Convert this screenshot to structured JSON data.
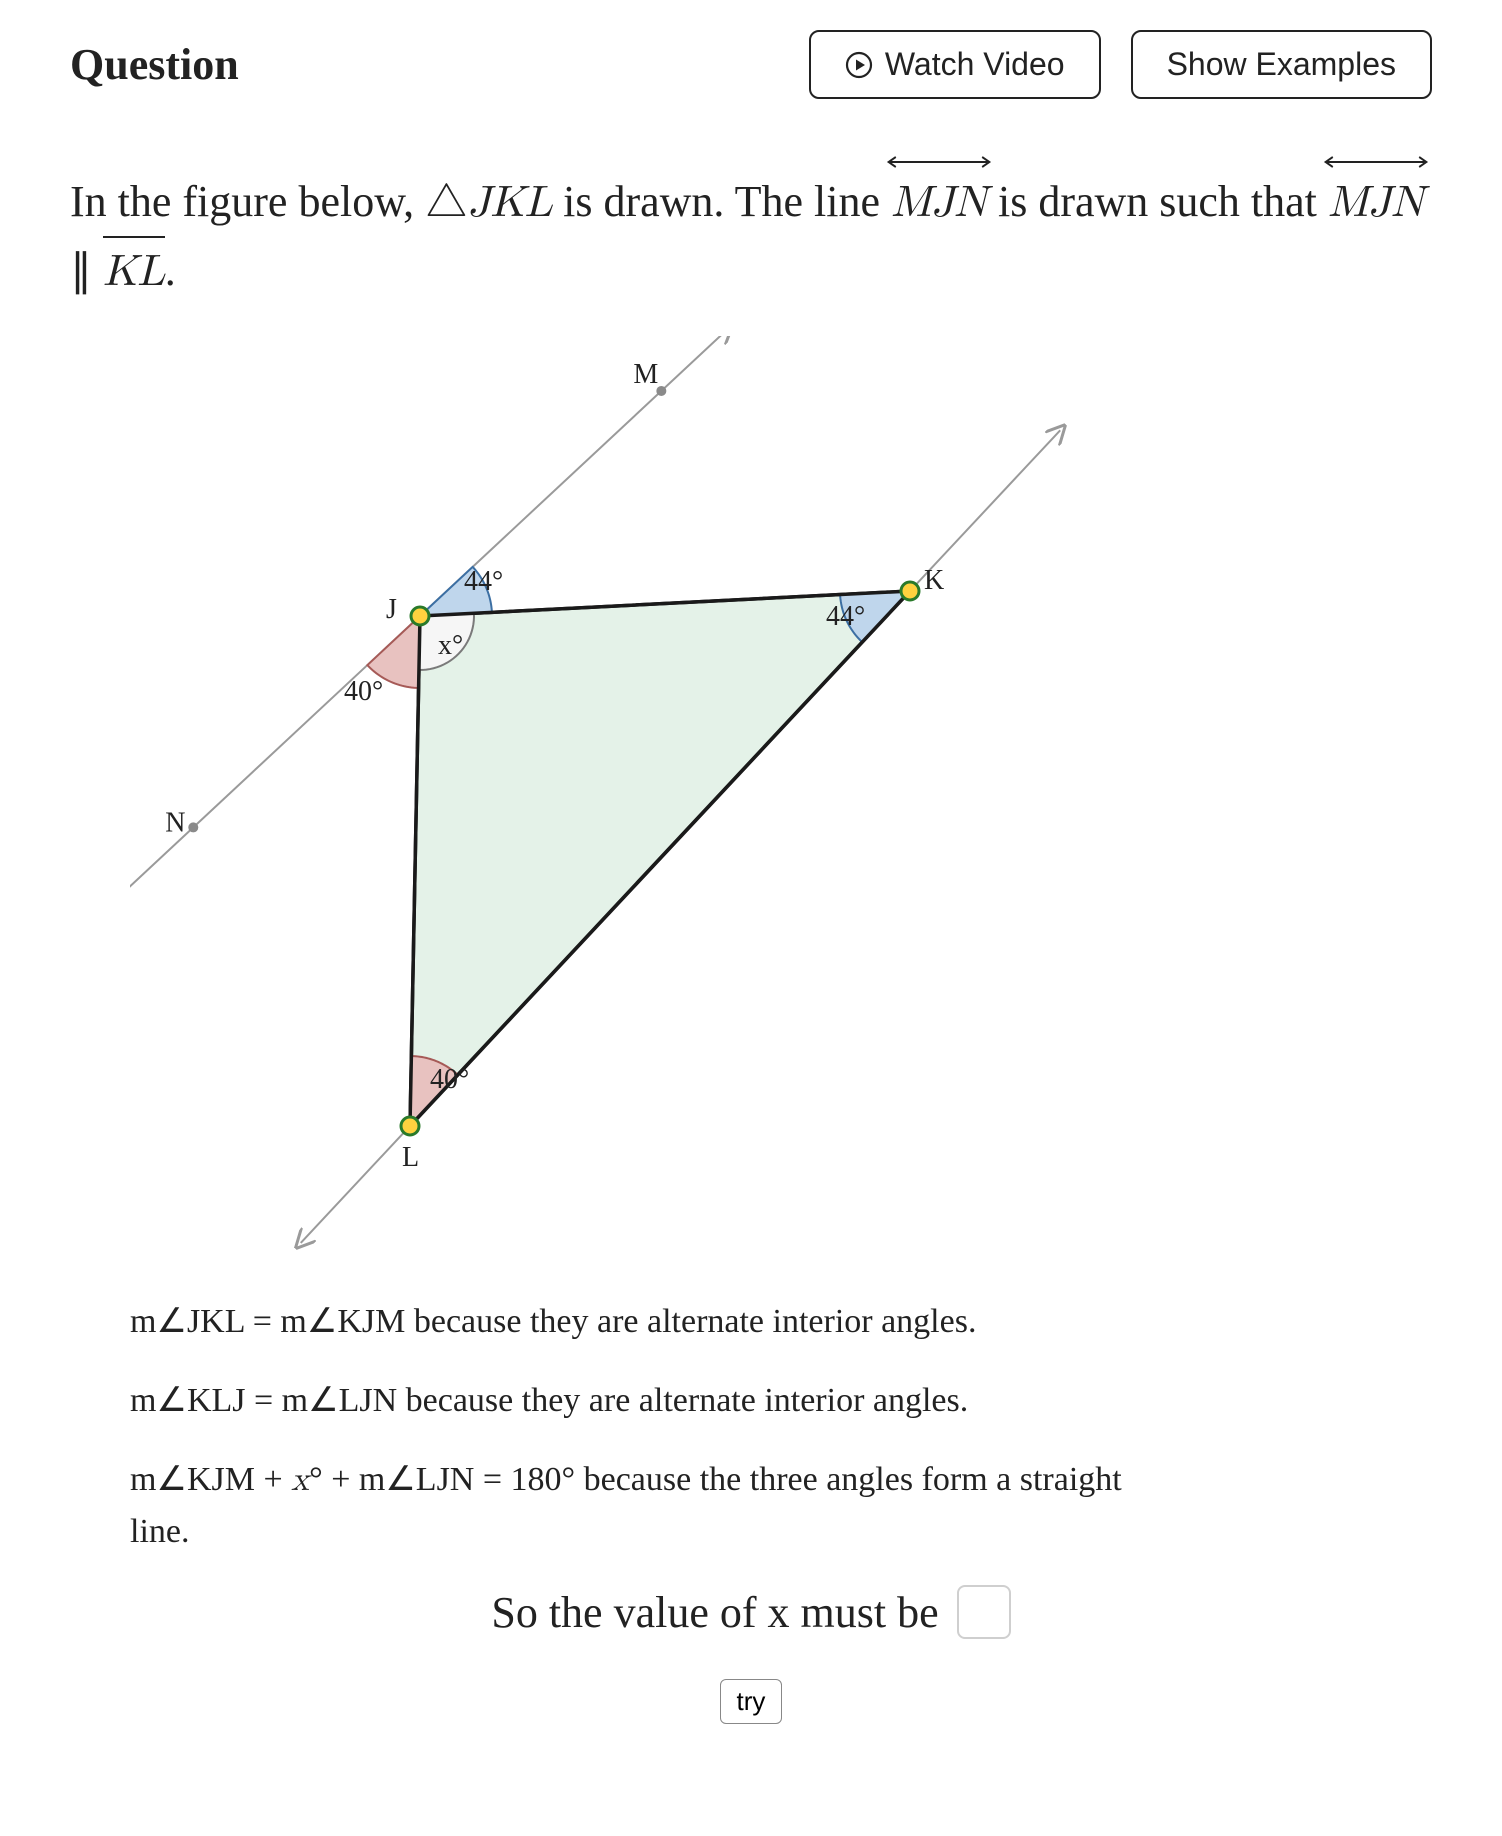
{
  "header": {
    "title": "Question",
    "watch_video": "Watch Video",
    "show_examples": "Show Examples"
  },
  "problem": {
    "pre": "In the figure below, ",
    "triangle": "JKL",
    "mid": " is drawn. The line ",
    "line_mjn": "MJN",
    "post": " is drawn such that ",
    "parallel_left": "MJN",
    "parallel_sym": " ∥ ",
    "parallel_right": "KL",
    "end": "."
  },
  "figure": {
    "background_color": "#ffffff",
    "triangle_fill": "#e4f2e8",
    "triangle_stroke": "#1a1a1a",
    "line_color": "#9a9a9a",
    "angle_kjm": {
      "label": "44°",
      "fill": "#bfd6ec",
      "stroke": "#3c6fa3"
    },
    "angle_x": {
      "label": "x°",
      "fill": "#f6f6f6",
      "stroke": "#7a7a7a"
    },
    "angle_ljn": {
      "label": "40°",
      "fill": "#e8c2c0",
      "stroke": "#a65a57"
    },
    "angle_k": {
      "label": "44°",
      "fill": "#bfd6ec",
      "stroke": "#3c6fa3"
    },
    "angle_l": {
      "label": "40°",
      "fill": "#e8c2c0",
      "stroke": "#a65a57"
    },
    "vertex_fill": "#ffd23f",
    "vertex_stroke": "#2a7a2a",
    "point_fill": "#8a8a8a",
    "labels": {
      "M": "M",
      "N": "N",
      "J": "J",
      "K": "K",
      "L": "L"
    },
    "label_font_size": 28
  },
  "explain": {
    "l1a": "m",
    "l1b": "JKL = m",
    "l1c": "KJM because they are alternate interior angles.",
    "l2a": "m",
    "l2b": "KLJ = m",
    "l2c": "LJN because they are alternate interior angles.",
    "l3a": "m",
    "l3b": "KJM + ",
    "l3x": "x",
    "l3c": "° + m",
    "l3d": "LJN = 180° because the three angles form a straight line."
  },
  "final": {
    "text": "So the value of x must be"
  },
  "try_label": "try",
  "colors": {
    "text": "#222222",
    "border": "#222222",
    "input_border": "#cfcfcf"
  }
}
